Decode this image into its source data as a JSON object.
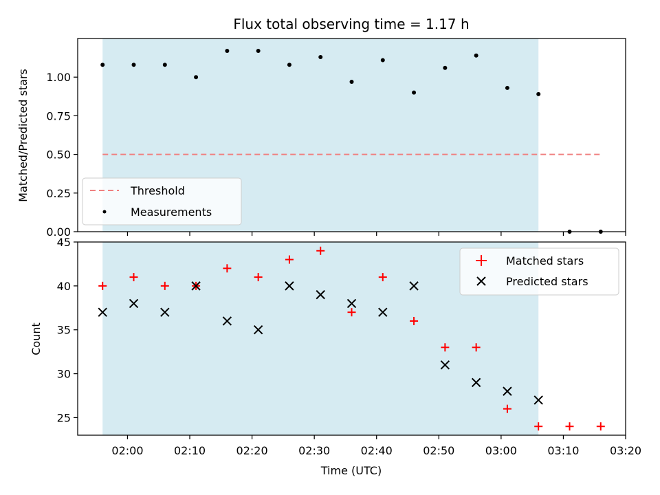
{
  "chart_data": {
    "title": "Flux total observing time = 1.17 h",
    "xlabel": "Time (UTC)",
    "x_ticks": [
      "02:00",
      "02:10",
      "02:20",
      "02:30",
      "02:40",
      "02:50",
      "03:00",
      "03:10",
      "03:20"
    ],
    "x_range": [
      "01:52",
      "03:20"
    ],
    "shaded_interval": [
      "01:56",
      "03:06"
    ],
    "shade_color": "#add8e6",
    "times": [
      "01:56",
      "02:01",
      "02:06",
      "02:11",
      "02:16",
      "02:21",
      "02:26",
      "02:31",
      "02:36",
      "02:41",
      "02:46",
      "02:51",
      "02:56",
      "03:01",
      "03:06",
      "03:11",
      "03:16"
    ],
    "panels": [
      {
        "type": "scatter",
        "ylabel": "Matched/Predicted stars",
        "ylim": [
          0,
          1.25
        ],
        "y_ticks": [
          "0.00",
          "0.25",
          "0.50",
          "0.75",
          "1.00"
        ],
        "threshold": {
          "value": 0.5,
          "range": [
            "01:56",
            "03:16"
          ],
          "color": "#f08080",
          "style": "dashed"
        },
        "legend": {
          "placement": "lower-left",
          "entries": [
            "Threshold",
            "Measurements"
          ]
        },
        "series": [
          {
            "name": "Measurements",
            "color": "#000000",
            "marker": "dot",
            "values": [
              1.08,
              1.08,
              1.08,
              1.0,
              1.17,
              1.17,
              1.08,
              1.13,
              0.97,
              1.11,
              0.9,
              1.06,
              1.14,
              0.93,
              0.89,
              0.0,
              0.0
            ]
          }
        ]
      },
      {
        "type": "scatter",
        "ylabel": "Count",
        "ylim": [
          23,
          45
        ],
        "y_ticks": [
          "25",
          "30",
          "35",
          "40",
          "45"
        ],
        "legend": {
          "placement": "top-right",
          "entries": [
            "Matched stars",
            "Predicted stars"
          ]
        },
        "series": [
          {
            "name": "Matched stars",
            "color": "#ff0000",
            "marker": "plus",
            "values": [
              40,
              41,
              40,
              40,
              42,
              41,
              43,
              44,
              37,
              41,
              36,
              33,
              33,
              26,
              24,
              24,
              24
            ]
          },
          {
            "name": "Predicted stars",
            "color": "#000000",
            "marker": "x",
            "values": [
              37,
              38,
              37,
              40,
              36,
              35,
              40,
              39,
              38,
              37,
              40,
              31,
              29,
              28,
              27,
              null,
              null
            ]
          }
        ]
      }
    ]
  }
}
